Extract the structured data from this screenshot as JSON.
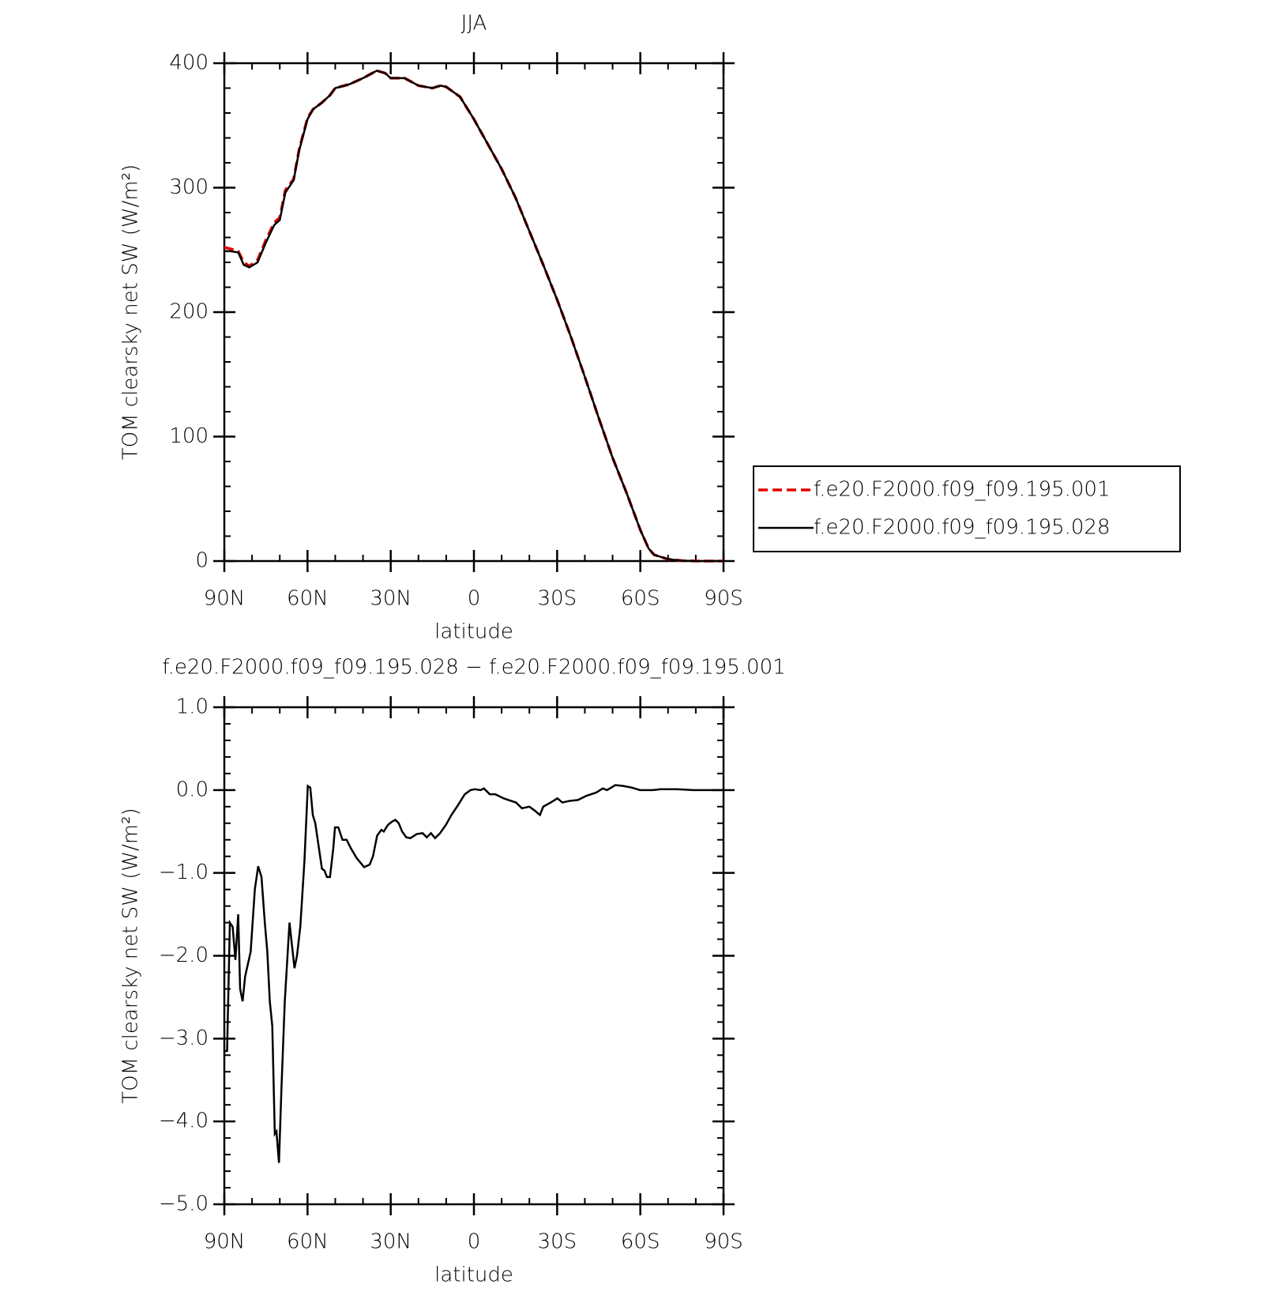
{
  "chart_data": [
    {
      "type": "line",
      "title": "JJA",
      "xlabel": "latitude",
      "ylabel": "TOM clearsky net SW (W/m²)",
      "xlim": [
        90,
        -90
      ],
      "xticks": [
        {
          "value": 90,
          "label": "90N"
        },
        {
          "value": 60,
          "label": "60N"
        },
        {
          "value": 30,
          "label": "30N"
        },
        0,
        {
          "value": -30,
          "label": "30S"
        },
        {
          "value": -60,
          "label": "60S"
        },
        {
          "value": -90,
          "label": "90S"
        }
      ],
      "xminorticks": [
        80,
        70,
        50,
        40,
        20,
        10,
        -10,
        -20,
        -40,
        -50,
        -70,
        -80
      ],
      "ylim": [
        0,
        400
      ],
      "yticks": [
        0,
        100,
        200,
        300,
        400
      ],
      "yminorticks": [
        20,
        40,
        60,
        80,
        120,
        140,
        160,
        180,
        220,
        240,
        260,
        280,
        320,
        340,
        360,
        380
      ],
      "legend": "right",
      "x": [
        90,
        88,
        85,
        83,
        81,
        78,
        75,
        72,
        70,
        68,
        65,
        63,
        60,
        58,
        55,
        52,
        50,
        45,
        40,
        35,
        32,
        30,
        25,
        20,
        15,
        12,
        10,
        5,
        0,
        -5,
        -10,
        -15,
        -20,
        -25,
        -30,
        -35,
        -40,
        -45,
        -50,
        -55,
        -60,
        -63,
        -65,
        -70,
        -75,
        -80,
        -85,
        -90
      ],
      "series": [
        {
          "name": "f.e20.F2000.f09_f09.195.001",
          "color": "#e00000",
          "style": "dashed",
          "values": [
            252,
            251,
            249,
            240,
            237,
            242,
            258,
            272,
            276,
            298,
            307,
            331,
            356,
            363,
            368,
            374,
            380,
            383,
            388,
            394,
            392,
            388,
            388,
            382,
            380,
            382,
            381,
            373,
            355,
            335,
            315,
            292,
            265,
            238,
            210,
            180,
            148,
            115,
            83,
            55,
            25,
            10,
            5,
            1.5,
            0.3,
            0,
            0,
            0
          ]
        },
        {
          "name": "f.e20.F2000.f09_f09.195.028",
          "color": "#000000",
          "style": "solid",
          "values": [
            249,
            249,
            248,
            238,
            236,
            240,
            256,
            270,
            274,
            296,
            306,
            330,
            355,
            363,
            368,
            374,
            380,
            383,
            388,
            394,
            392,
            388,
            388,
            382,
            380,
            382,
            381,
            373,
            355,
            335,
            315,
            292,
            265,
            238,
            210,
            180,
            148,
            115,
            83,
            55,
            25,
            10,
            5,
            1.5,
            0.3,
            0,
            0,
            0
          ]
        }
      ]
    },
    {
      "type": "line",
      "title": "f.e20.F2000.f09_f09.195.028 − f.e20.F2000.f09_f09.195.001",
      "xlabel": "latitude",
      "ylabel": "TOM clearsky net SW (W/m²)",
      "xlim": [
        90,
        -90
      ],
      "xticks": [
        {
          "value": 90,
          "label": "90N"
        },
        {
          "value": 60,
          "label": "60N"
        },
        {
          "value": 30,
          "label": "30N"
        },
        0,
        {
          "value": -30,
          "label": "30S"
        },
        {
          "value": -60,
          "label": "60S"
        },
        {
          "value": -90,
          "label": "90S"
        }
      ],
      "xminorticks": [
        80,
        70,
        50,
        40,
        20,
        10,
        -10,
        -20,
        -40,
        -50,
        -70,
        -80
      ],
      "ylim": [
        -5,
        1
      ],
      "yticks": [
        {
          "value": -5,
          "label": "−5.0"
        },
        {
          "value": -4,
          "label": "−4.0"
        },
        {
          "value": -3,
          "label": "−3.0"
        },
        {
          "value": -2,
          "label": "−2.0"
        },
        {
          "value": -1,
          "label": "−1.0"
        },
        {
          "value": 0,
          "label": "0.0"
        },
        {
          "value": 1,
          "label": "1.0"
        }
      ],
      "yminorticks": [
        -4.8,
        -4.6,
        -4.4,
        -4.2,
        -3.8,
        -3.6,
        -3.4,
        -3.2,
        -2.8,
        -2.6,
        -2.4,
        -2.2,
        -1.8,
        -1.6,
        -1.4,
        -1.2,
        -0.8,
        -0.6,
        -0.4,
        -0.2,
        0.2,
        0.4,
        0.6,
        0.8
      ],
      "x": [
        90,
        89,
        88,
        87,
        86,
        85,
        84.3,
        83.4,
        82.5,
        80.5,
        79,
        77.8,
        76.6,
        75.4,
        74.5,
        73.6,
        72.7,
        71.8,
        71.2,
        70.3,
        69.4,
        68.2,
        66.5,
        64.7,
        63.8,
        62.6,
        61.1,
        59.9,
        59,
        58.1,
        57.2,
        54.8,
        53.9,
        53,
        51.9,
        50.7,
        50.1,
        48.9,
        47.4,
        45.9,
        44.4,
        42.3,
        39.6,
        37.6,
        36.4,
        34.9,
        33.4,
        32.5,
        31,
        29.5,
        28.3,
        27.1,
        25.9,
        24.4,
        22.9,
        20.6,
        18.5,
        17,
        15.5,
        14,
        12.2,
        10.1,
        8.1,
        5.7,
        3.3,
        1.2,
        -0.3,
        -2.4,
        -3.6,
        -5.7,
        -7.7,
        -10.7,
        -15.2,
        -17.3,
        -20,
        -22,
        -23.8,
        -25,
        -27.7,
        -30.1,
        -31.9,
        -34.6,
        -37.5,
        -40.5,
        -44.1,
        -46.5,
        -48,
        -51,
        -53.9,
        -56.9,
        -59.9,
        -64.4,
        -67.3,
        -73.3,
        -79.2,
        -90
      ],
      "series": [
        {
          "color": "#000000",
          "style": "solid",
          "values": [
            -3.15,
            -3.15,
            -1.6,
            -1.65,
            -2.05,
            -1.5,
            -2.4,
            -2.55,
            -2.25,
            -1.95,
            -1.2,
            -0.92,
            -1.05,
            -1.6,
            -1.95,
            -2.55,
            -2.85,
            -4.15,
            -4.12,
            -4.5,
            -3.6,
            -2.55,
            -1.6,
            -2.15,
            -2.0,
            -1.65,
            -0.85,
            0.05,
            0.03,
            -0.3,
            -0.4,
            -0.95,
            -0.97,
            -1.05,
            -1.05,
            -0.7,
            -0.45,
            -0.45,
            -0.6,
            -0.6,
            -0.7,
            -0.82,
            -0.93,
            -0.9,
            -0.8,
            -0.55,
            -0.48,
            -0.5,
            -0.42,
            -0.38,
            -0.36,
            -0.4,
            -0.5,
            -0.57,
            -0.58,
            -0.53,
            -0.52,
            -0.57,
            -0.52,
            -0.58,
            -0.52,
            -0.42,
            -0.3,
            -0.18,
            -0.05,
            0.0,
            0.01,
            0.0,
            0.02,
            -0.05,
            -0.05,
            -0.1,
            -0.15,
            -0.22,
            -0.2,
            -0.25,
            -0.3,
            -0.2,
            -0.15,
            -0.1,
            -0.15,
            -0.13,
            -0.12,
            -0.07,
            -0.03,
            0.02,
            0.0,
            0.06,
            0.05,
            0.03,
            0.0,
            0.0,
            0.01,
            0.01,
            0.0,
            0.0
          ]
        }
      ]
    }
  ]
}
